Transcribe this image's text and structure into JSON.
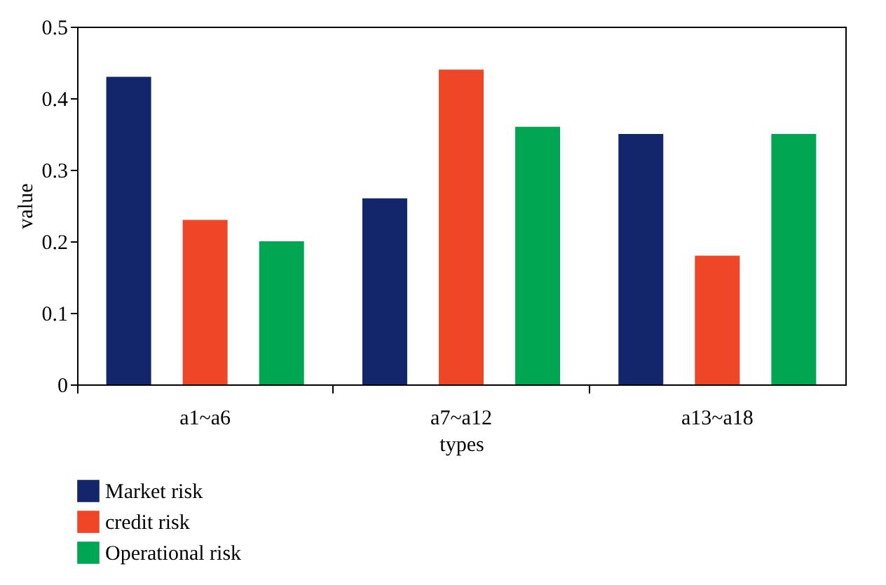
{
  "chart_data": {
    "type": "bar",
    "xlabel": "types",
    "ylabel": "value",
    "categories": [
      "a1~a6",
      "a7~a12",
      "a13~a18"
    ],
    "series": [
      {
        "name": "Market risk",
        "color": "#13266b",
        "values": [
          0.43,
          0.26,
          0.35
        ]
      },
      {
        "name": "credit risk",
        "color": "#ef4628",
        "values": [
          0.23,
          0.44,
          0.18
        ]
      },
      {
        "name": "Operational risk",
        "color": "#00a651",
        "values": [
          0.2,
          0.36,
          0.35
        ]
      }
    ],
    "ylim": [
      0,
      0.5
    ],
    "yticks": [
      0,
      0.1,
      0.2,
      0.3,
      0.4,
      0.5
    ],
    "grid": false,
    "legend": "bottom"
  }
}
